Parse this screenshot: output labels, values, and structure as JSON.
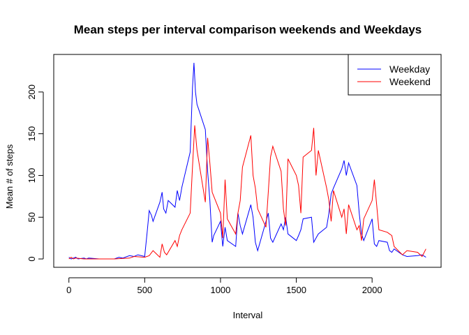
{
  "chart_data": {
    "type": "line",
    "title": "Mean steps per interval comparison weekends and Weekdays",
    "xlabel": "Interval",
    "ylabel": "Mean # of steps",
    "xlim": [
      -100,
      2455
    ],
    "ylim": [
      -10,
      245
    ],
    "xticks": [
      0,
      500,
      1000,
      1500,
      2000
    ],
    "yticks": [
      0,
      50,
      100,
      150,
      200
    ],
    "grid": false,
    "legend_position": "top-right",
    "series": [
      {
        "name": "Weekday",
        "color": "#0000ff",
        "x": [
          0,
          15,
          30,
          45,
          60,
          100,
          115,
          130,
          200,
          300,
          330,
          355,
          400,
          430,
          455,
          500,
          515,
          530,
          545,
          555,
          600,
          615,
          625,
          640,
          655,
          700,
          715,
          730,
          745,
          800,
          815,
          825,
          835,
          845,
          855,
          900,
          915,
          930,
          945,
          955,
          1000,
          1015,
          1030,
          1045,
          1100,
          1115,
          1130,
          1145,
          1200,
          1215,
          1230,
          1245,
          1300,
          1315,
          1330,
          1345,
          1400,
          1415,
          1430,
          1445,
          1500,
          1515,
          1530,
          1545,
          1600,
          1615,
          1630,
          1645,
          1700,
          1715,
          1730,
          1745,
          1800,
          1815,
          1830,
          1845,
          1900,
          1915,
          1930,
          1945,
          2000,
          2015,
          2030,
          2045,
          2100,
          2115,
          2130,
          2145,
          2200,
          2230,
          2300,
          2330,
          2355
        ],
        "values": [
          2,
          0,
          1,
          2,
          0,
          1,
          0,
          1,
          0,
          0,
          2,
          1,
          4,
          3,
          5,
          3,
          30,
          58,
          52,
          45,
          68,
          80,
          60,
          55,
          70,
          62,
          82,
          70,
          86,
          128,
          205,
          235,
          200,
          185,
          180,
          155,
          105,
          70,
          20,
          28,
          45,
          15,
          38,
          22,
          15,
          55,
          40,
          30,
          65,
          50,
          20,
          10,
          45,
          55,
          25,
          20,
          42,
          35,
          50,
          30,
          22,
          28,
          35,
          48,
          50,
          20,
          25,
          30,
          38,
          55,
          78,
          85,
          108,
          118,
          100,
          115,
          88,
          55,
          30,
          22,
          48,
          18,
          15,
          22,
          20,
          10,
          8,
          12,
          5,
          3,
          4,
          5,
          2
        ]
      },
      {
        "name": "Weekend",
        "color": "#ff0000",
        "x": [
          0,
          15,
          30,
          45,
          100,
          200,
          300,
          400,
          430,
          500,
          530,
          555,
          600,
          615,
          630,
          645,
          700,
          715,
          730,
          745,
          800,
          815,
          830,
          845,
          900,
          915,
          930,
          945,
          1000,
          1015,
          1030,
          1045,
          1100,
          1115,
          1130,
          1145,
          1200,
          1215,
          1230,
          1245,
          1300,
          1315,
          1330,
          1345,
          1400,
          1415,
          1430,
          1445,
          1500,
          1515,
          1530,
          1545,
          1600,
          1615,
          1630,
          1645,
          1700,
          1715,
          1730,
          1745,
          1800,
          1815,
          1830,
          1845,
          1900,
          1915,
          1930,
          1945,
          2000,
          2015,
          2030,
          2045,
          2100,
          2115,
          2130,
          2145,
          2200,
          2230,
          2300,
          2330,
          2355
        ],
        "values": [
          0,
          2,
          0,
          1,
          0,
          0,
          0,
          1,
          3,
          2,
          4,
          10,
          2,
          18,
          8,
          5,
          22,
          15,
          28,
          35,
          55,
          110,
          160,
          130,
          68,
          145,
          115,
          80,
          55,
          25,
          95,
          48,
          30,
          55,
          70,
          110,
          148,
          100,
          85,
          60,
          38,
          80,
          122,
          135,
          105,
          60,
          40,
          120,
          100,
          88,
          55,
          122,
          130,
          157,
          100,
          130,
          85,
          70,
          45,
          82,
          50,
          60,
          30,
          65,
          35,
          40,
          22,
          48,
          70,
          95,
          65,
          35,
          32,
          30,
          28,
          15,
          5,
          10,
          8,
          3,
          12
        ]
      }
    ]
  }
}
